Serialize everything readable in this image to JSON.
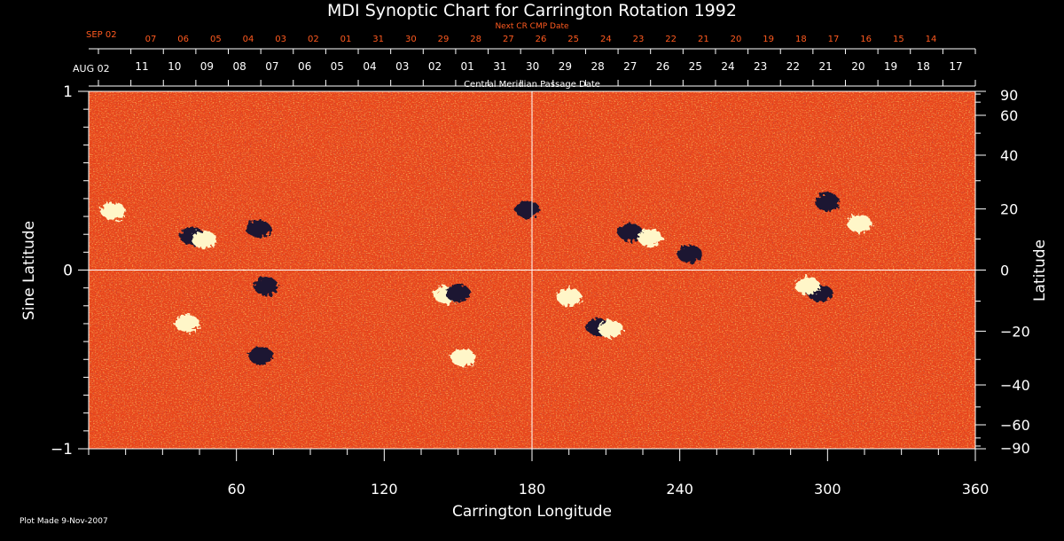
{
  "chart_data": {
    "type": "heatmap",
    "title": "MDI Synoptic Chart for Carrington Rotation 1992",
    "xlabel": "Carrington Longitude",
    "ylabel_left": "Sine Latitude",
    "ylabel_right": "Latitude",
    "xlim": [
      0,
      360
    ],
    "ylim": [
      -1,
      1
    ],
    "x_ticks": [
      60,
      120,
      180,
      240,
      300,
      360
    ],
    "y_ticks_left": [
      {
        "value": 1,
        "label": "1"
      },
      {
        "value": 0,
        "label": "0"
      },
      {
        "value": -1,
        "label": "−1"
      }
    ],
    "y_ticks_right_deg": [
      90,
      60,
      40,
      20,
      0,
      -20,
      -40,
      -60,
      -90
    ],
    "top_axis_label": "Central Meridian Passage Date",
    "top_axis_start": "AUG 02",
    "top_axis_dates": [
      "11",
      "10",
      "09",
      "08",
      "07",
      "06",
      "05",
      "04",
      "03",
      "02",
      "01",
      "31",
      "30",
      "29",
      "28",
      "27",
      "26",
      "25",
      "24",
      "23",
      "22",
      "21",
      "20",
      "19",
      "18",
      "17"
    ],
    "next_axis_label": "Next CR CMP Date",
    "next_axis_start": "SEP 02",
    "next_axis_dates": [
      "07",
      "06",
      "05",
      "04",
      "03",
      "02",
      "01",
      "31",
      "30",
      "29",
      "28",
      "27",
      "26",
      "25",
      "24",
      "23",
      "22",
      "21",
      "20",
      "19",
      "18",
      "17",
      "16",
      "15",
      "14"
    ],
    "guide_lines": {
      "longitude": 180,
      "sine_latitude": 0
    },
    "active_regions": [
      {
        "lon": 10,
        "sinlat": 0.33,
        "polarity": "positive"
      },
      {
        "lon": 42,
        "sinlat": 0.19,
        "polarity": "negative"
      },
      {
        "lon": 47,
        "sinlat": 0.17,
        "polarity": "positive"
      },
      {
        "lon": 69,
        "sinlat": 0.23,
        "polarity": "negative"
      },
      {
        "lon": 72,
        "sinlat": -0.09,
        "polarity": "negative"
      },
      {
        "lon": 40,
        "sinlat": -0.3,
        "polarity": "positive"
      },
      {
        "lon": 70,
        "sinlat": -0.48,
        "polarity": "negative"
      },
      {
        "lon": 145,
        "sinlat": -0.14,
        "polarity": "positive"
      },
      {
        "lon": 150,
        "sinlat": -0.13,
        "polarity": "negative"
      },
      {
        "lon": 152,
        "sinlat": -0.49,
        "polarity": "positive"
      },
      {
        "lon": 178,
        "sinlat": 0.34,
        "polarity": "negative"
      },
      {
        "lon": 195,
        "sinlat": -0.15,
        "polarity": "positive"
      },
      {
        "lon": 207,
        "sinlat": -0.32,
        "polarity": "negative"
      },
      {
        "lon": 212,
        "sinlat": -0.33,
        "polarity": "positive"
      },
      {
        "lon": 220,
        "sinlat": 0.21,
        "polarity": "negative"
      },
      {
        "lon": 228,
        "sinlat": 0.18,
        "polarity": "positive"
      },
      {
        "lon": 244,
        "sinlat": 0.09,
        "polarity": "negative"
      },
      {
        "lon": 297,
        "sinlat": -0.13,
        "polarity": "negative"
      },
      {
        "lon": 292,
        "sinlat": -0.09,
        "polarity": "positive"
      },
      {
        "lon": 313,
        "sinlat": 0.26,
        "polarity": "positive"
      },
      {
        "lon": 300,
        "sinlat": 0.38,
        "polarity": "negative"
      }
    ],
    "colors": {
      "background": "#000000",
      "field_base": "#e8461c",
      "positive": "#fff6c8",
      "negative": "#1a1230",
      "top_dates": "#ff5a1f",
      "guide": "#ffffff"
    }
  },
  "footer": {
    "plot_made": "Plot Made  9-Nov-2007"
  }
}
